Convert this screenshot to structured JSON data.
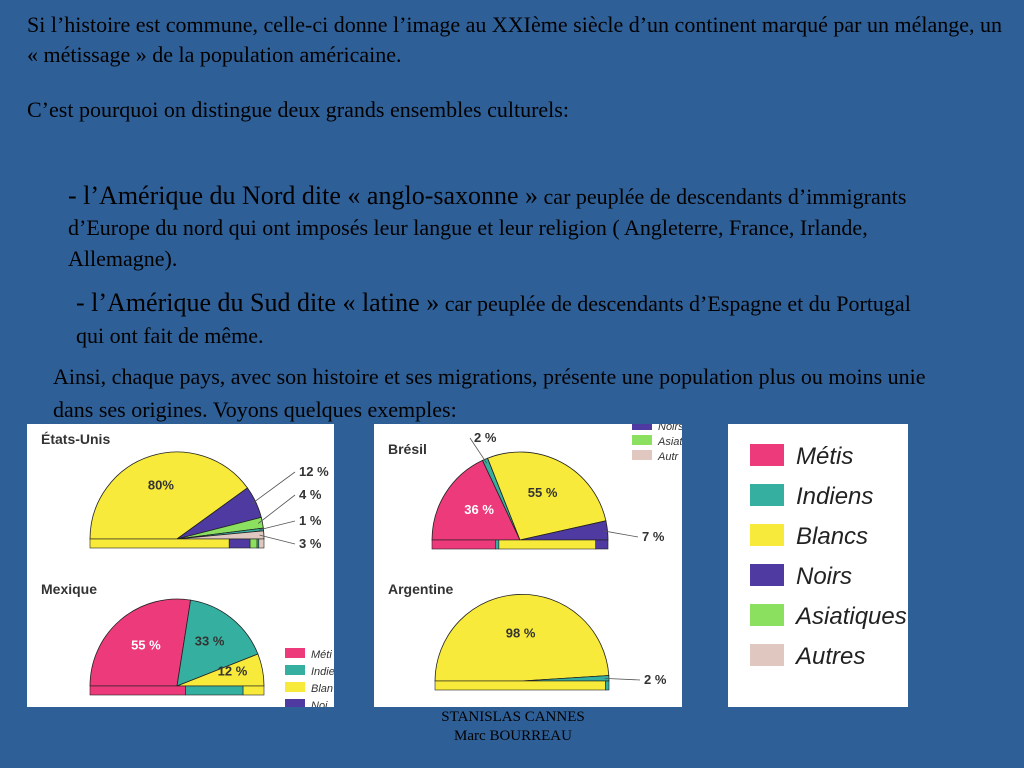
{
  "intro": {
    "line1": "Si l’histoire est commune, celle-ci donne l’image au XXIème siècle d’un continent marqué par un mélange, un « métissage » de la population américaine.",
    "line2": "C’est pourquoi on distingue deux grands ensembles culturels:"
  },
  "bullets": [
    {
      "lead": "- l’Amérique du Nord dite «  anglo-saxonne »",
      "rest": " car peuplée de descendants d’immigrants d’Europe du nord qui ont imposés leur langue et leur religion ( Angleterre, France, Irlande, Allemagne)."
    },
    {
      "lead": " - l’Amérique du Sud dite « latine »",
      "rest": " car peuplée de descendants d’Espagne et du Portugal qui ont fait de même."
    }
  ],
  "conclusion": "Ainsi, chaque pays, avec son histoire et ses migrations, présente une population plus ou moins unie dans ses origines. Voyons quelques exemples:",
  "credits": {
    "line1": "STANISLAS CANNES",
    "line2": "Marc BOURREAU"
  },
  "colors": {
    "metis": "#ec3a7a",
    "indiens": "#35b0a0",
    "blancs": "#f7ea3a",
    "noirs": "#4e3aa0",
    "asiatiques": "#8ce060",
    "autres": "#e0c8c0"
  },
  "legend": [
    {
      "key": "metis",
      "label": "Métis"
    },
    {
      "key": "indiens",
      "label": "Indiens"
    },
    {
      "key": "blancs",
      "label": "Blancs"
    },
    {
      "key": "noirs",
      "label": "Noirs"
    },
    {
      "key": "asiatiques",
      "label": "Asiatiques"
    },
    {
      "key": "autres",
      "label": "Autres"
    }
  ],
  "legend_partial": {
    "left": [
      "Méti",
      "Indie",
      "Blan",
      "Noi"
    ],
    "middle": [
      "Noirs",
      "Asiat",
      "Autr"
    ]
  },
  "chart_data": [
    {
      "type": "pie",
      "title": "États-Unis",
      "slices": [
        {
          "key": "blancs",
          "value": 80,
          "label": "80%"
        },
        {
          "key": "noirs",
          "value": 12,
          "label": "12 %"
        },
        {
          "key": "asiatiques",
          "value": 4,
          "label": "4 %"
        },
        {
          "key": "indiens",
          "value": 1,
          "label": "1 %"
        },
        {
          "key": "autres",
          "value": 3,
          "label": "3 %"
        }
      ]
    },
    {
      "type": "pie",
      "title": "Mexique",
      "slices": [
        {
          "key": "metis",
          "value": 55,
          "label": "55 %"
        },
        {
          "key": "indiens",
          "value": 33,
          "label": "33 %"
        },
        {
          "key": "blancs",
          "value": 12,
          "label": "12 %"
        }
      ]
    },
    {
      "type": "pie",
      "title": "Brésil",
      "slices": [
        {
          "key": "metis",
          "value": 36,
          "label": "36 %"
        },
        {
          "key": "indiens",
          "value": 2,
          "label": "2 %"
        },
        {
          "key": "blancs",
          "value": 55,
          "label": "55 %"
        },
        {
          "key": "noirs",
          "value": 7,
          "label": "7 %"
        }
      ]
    },
    {
      "type": "pie",
      "title": "Argentine",
      "slices": [
        {
          "key": "blancs",
          "value": 98,
          "label": "98 %"
        },
        {
          "key": "indiens",
          "value": 2,
          "label": "2 %"
        }
      ]
    }
  ]
}
